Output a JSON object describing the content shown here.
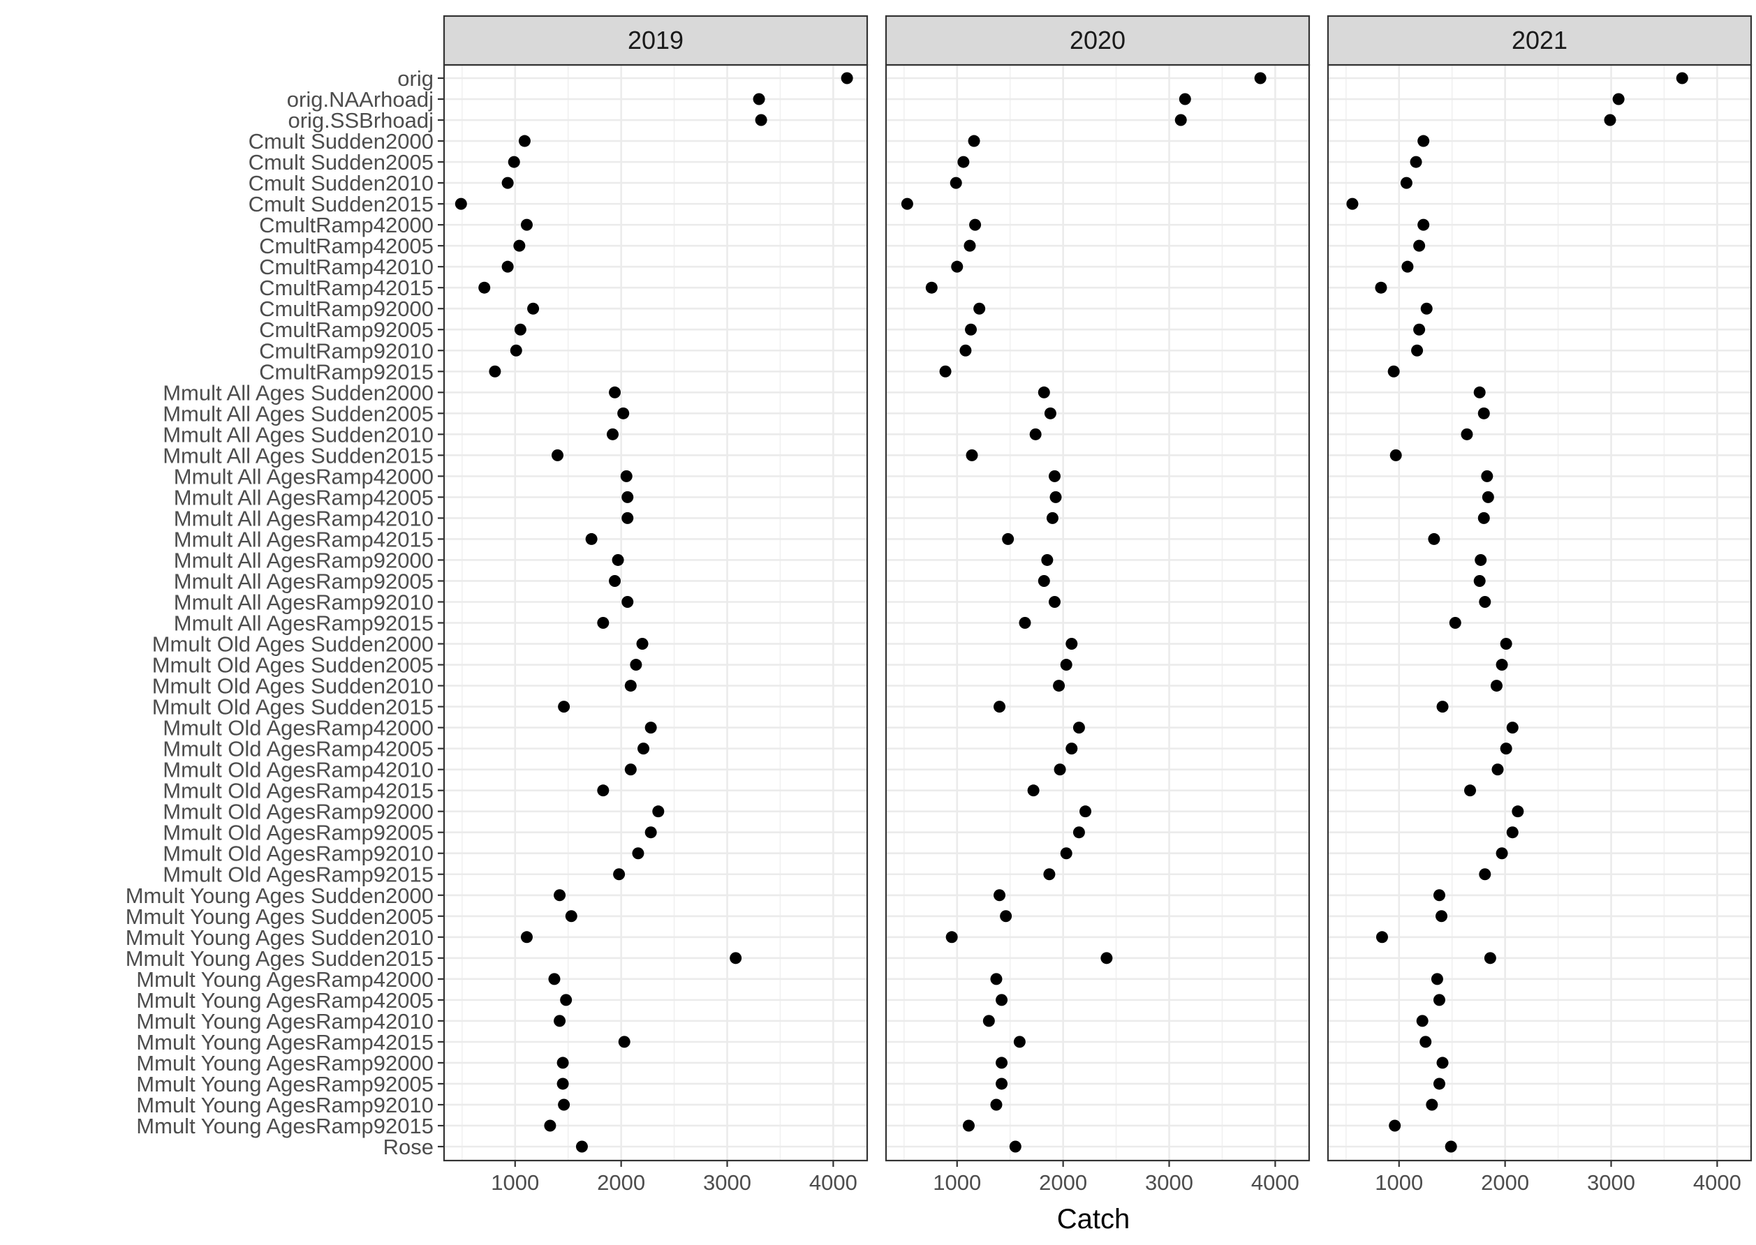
{
  "chart_data": {
    "type": "scatter",
    "title": "",
    "xlabel": "Catch",
    "ylabel": "",
    "xlim": [
      330,
      4320
    ],
    "xticks": [
      1000,
      2000,
      3000,
      4000
    ],
    "grid": true,
    "legend": "none",
    "point_color": "#000000",
    "categories": [
      "orig",
      "orig.NAArhoadj",
      "orig.SSBrhoadj",
      "Cmult Sudden2000",
      "Cmult Sudden2005",
      "Cmult Sudden2010",
      "Cmult Sudden2015",
      "CmultRamp42000",
      "CmultRamp42005",
      "CmultRamp42010",
      "CmultRamp42015",
      "CmultRamp92000",
      "CmultRamp92005",
      "CmultRamp92010",
      "CmultRamp92015",
      "Mmult All Ages Sudden2000",
      "Mmult All Ages Sudden2005",
      "Mmult All Ages Sudden2010",
      "Mmult All Ages Sudden2015",
      "Mmult All AgesRamp42000",
      "Mmult All AgesRamp42005",
      "Mmult All AgesRamp42010",
      "Mmult All AgesRamp42015",
      "Mmult All AgesRamp92000",
      "Mmult All AgesRamp92005",
      "Mmult All AgesRamp92010",
      "Mmult All AgesRamp92015",
      "Mmult Old Ages Sudden2000",
      "Mmult Old Ages Sudden2005",
      "Mmult Old Ages Sudden2010",
      "Mmult Old Ages Sudden2015",
      "Mmult Old AgesRamp42000",
      "Mmult Old AgesRamp42005",
      "Mmult Old AgesRamp42010",
      "Mmult Old AgesRamp42015",
      "Mmult Old AgesRamp92000",
      "Mmult Old AgesRamp92005",
      "Mmult Old AgesRamp92010",
      "Mmult Old AgesRamp92015",
      "Mmult Young Ages Sudden2000",
      "Mmult Young Ages Sudden2005",
      "Mmult Young Ages Sudden2010",
      "Mmult Young Ages Sudden2015",
      "Mmult Young AgesRamp42000",
      "Mmult Young AgesRamp42005",
      "Mmult Young AgesRamp42010",
      "Mmult Young AgesRamp42015",
      "Mmult Young AgesRamp92000",
      "Mmult Young AgesRamp92005",
      "Mmult Young AgesRamp92010",
      "Mmult Young AgesRamp92015",
      "Rose"
    ],
    "series": [
      {
        "name": "2019",
        "values": [
          4130,
          3300,
          3320,
          1090,
          990,
          930,
          490,
          1110,
          1040,
          930,
          710,
          1170,
          1050,
          1010,
          810,
          1940,
          2020,
          1920,
          1400,
          2050,
          2060,
          2060,
          1720,
          1970,
          1940,
          2060,
          1830,
          2200,
          2140,
          2090,
          1460,
          2280,
          2210,
          2090,
          1830,
          2350,
          2280,
          2160,
          1980,
          1420,
          1530,
          1110,
          3080,
          1370,
          1480,
          1420,
          2030,
          1450,
          1450,
          1460,
          1330,
          1630
        ]
      },
      {
        "name": "2020",
        "values": [
          3860,
          3150,
          3110,
          1160,
          1060,
          990,
          530,
          1170,
          1120,
          1000,
          760,
          1210,
          1130,
          1080,
          890,
          1820,
          1880,
          1740,
          1140,
          1920,
          1930,
          1900,
          1480,
          1850,
          1820,
          1920,
          1640,
          2080,
          2030,
          1960,
          1400,
          2150,
          2080,
          1970,
          1720,
          2210,
          2150,
          2030,
          1870,
          1400,
          1460,
          950,
          2410,
          1370,
          1420,
          1300,
          1590,
          1420,
          1420,
          1370,
          1110,
          1550
        ]
      },
      {
        "name": "2021",
        "values": [
          3670,
          3070,
          2990,
          1230,
          1160,
          1070,
          560,
          1230,
          1190,
          1080,
          830,
          1260,
          1190,
          1170,
          950,
          1760,
          1800,
          1640,
          970,
          1830,
          1840,
          1800,
          1330,
          1770,
          1760,
          1810,
          1530,
          2010,
          1970,
          1920,
          1410,
          2070,
          2010,
          1930,
          1670,
          2120,
          2070,
          1970,
          1810,
          1380,
          1400,
          840,
          1860,
          1360,
          1380,
          1220,
          1250,
          1410,
          1380,
          1310,
          960,
          1490
        ]
      }
    ]
  }
}
